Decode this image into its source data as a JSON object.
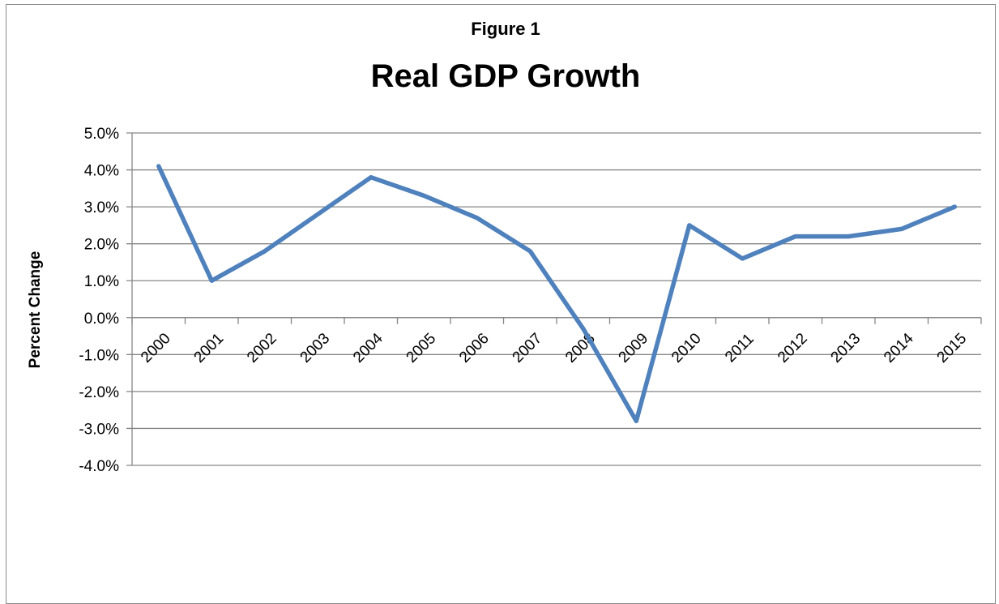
{
  "chart_data": {
    "type": "line",
    "supertitle": "Figure 1",
    "title": "Real GDP Growth",
    "xlabel": "",
    "ylabel": "Percent Change",
    "x": [
      "2000",
      "2001",
      "2002",
      "2003",
      "2004",
      "2005",
      "2006",
      "2007",
      "2008",
      "2009",
      "2010",
      "2011",
      "2012",
      "2013",
      "2014",
      "2015"
    ],
    "series": [
      {
        "values": [
          4.1,
          1.0,
          1.8,
          2.8,
          3.8,
          3.3,
          2.7,
          1.8,
          -0.3,
          -2.8,
          2.5,
          1.6,
          2.2,
          2.2,
          2.4,
          3.0
        ]
      }
    ],
    "yticks": [
      "5.0%",
      "4.0%",
      "3.0%",
      "2.0%",
      "1.0%",
      "0.0%",
      "-1.0%",
      "-2.0%",
      "-3.0%",
      "-4.0%"
    ],
    "ylim": [
      -4,
      5
    ],
    "grid": true,
    "line_color": "#4F81BD"
  }
}
